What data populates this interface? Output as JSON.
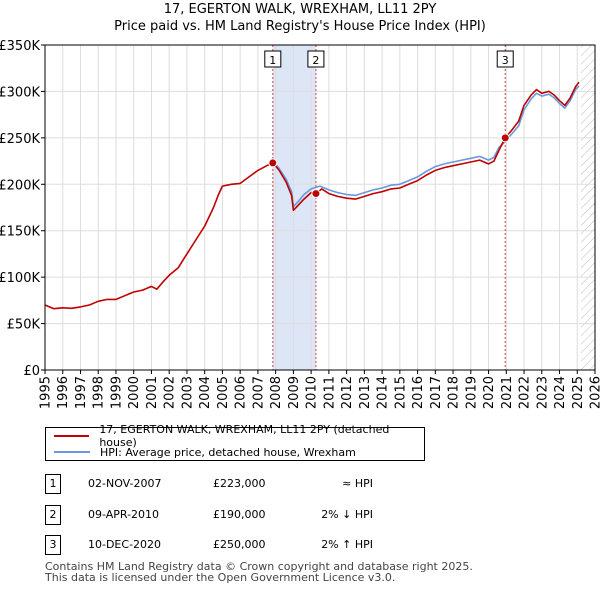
{
  "title_line1": "17, EGERTON WALK, WREXHAM, LL11 2PY",
  "title_line2": "Price paid vs. HM Land Registry's House Price Index (HPI)",
  "colors": {
    "price_paid": "#c00000",
    "hpi": "#6699dd",
    "shade": "#dde6f6",
    "marker_line": "#d04040"
  },
  "chart_data": {
    "type": "line",
    "xlim": [
      1995,
      2026
    ],
    "ylim": [
      0,
      350000
    ],
    "x_ticks": [
      "1995",
      "1996",
      "1997",
      "1998",
      "1999",
      "2000",
      "2001",
      "2002",
      "2003",
      "2004",
      "2005",
      "2006",
      "2007",
      "2008",
      "2009",
      "2010",
      "2011",
      "2012",
      "2013",
      "2014",
      "2015",
      "2016",
      "2017",
      "2018",
      "2019",
      "2020",
      "2021",
      "2022",
      "2023",
      "2024",
      "2025",
      "2026"
    ],
    "y_ticks": [
      {
        "value": 0,
        "label": "£0"
      },
      {
        "value": 50000,
        "label": "£50K"
      },
      {
        "value": 100000,
        "label": "£100K"
      },
      {
        "value": 150000,
        "label": "£150K"
      },
      {
        "value": 200000,
        "label": "£200K"
      },
      {
        "value": 250000,
        "label": "£250K"
      },
      {
        "value": 300000,
        "label": "£300K"
      },
      {
        "value": 350000,
        "label": "£350K"
      }
    ],
    "series": [
      {
        "name": "17, EGERTON WALK, WREXHAM, LL11 2PY (detached house)",
        "color": "#c00000",
        "points": [
          [
            1995.0,
            70000
          ],
          [
            1995.5,
            66000
          ],
          [
            1996.0,
            67000
          ],
          [
            1996.5,
            66500
          ],
          [
            1997.0,
            68000
          ],
          [
            1997.5,
            70000
          ],
          [
            1998.0,
            74000
          ],
          [
            1998.5,
            76000
          ],
          [
            1999.0,
            76000
          ],
          [
            1999.5,
            80000
          ],
          [
            2000.0,
            84000
          ],
          [
            2000.5,
            86000
          ],
          [
            2001.0,
            90000
          ],
          [
            2001.3,
            87000
          ],
          [
            2001.7,
            96000
          ],
          [
            2002.0,
            102000
          ],
          [
            2002.5,
            110000
          ],
          [
            2003.0,
            125000
          ],
          [
            2003.5,
            140000
          ],
          [
            2004.0,
            155000
          ],
          [
            2004.5,
            175000
          ],
          [
            2004.8,
            190000
          ],
          [
            2005.0,
            198000
          ],
          [
            2005.5,
            200000
          ],
          [
            2006.0,
            201000
          ],
          [
            2006.5,
            208000
          ],
          [
            2007.0,
            215000
          ],
          [
            2007.5,
            220000
          ],
          [
            2007.84,
            223000
          ],
          [
            2008.2,
            215000
          ],
          [
            2008.6,
            202000
          ],
          [
            2008.9,
            188000
          ],
          [
            2009.0,
            172000
          ],
          [
            2009.3,
            178000
          ],
          [
            2009.6,
            184000
          ],
          [
            2010.0,
            191000
          ],
          [
            2010.27,
            190000
          ],
          [
            2010.6,
            195000
          ],
          [
            2011.0,
            190000
          ],
          [
            2011.5,
            187000
          ],
          [
            2012.0,
            185000
          ],
          [
            2012.5,
            184000
          ],
          [
            2013.0,
            187000
          ],
          [
            2013.5,
            190000
          ],
          [
            2014.0,
            192000
          ],
          [
            2014.5,
            195000
          ],
          [
            2015.0,
            196000
          ],
          [
            2015.5,
            200000
          ],
          [
            2016.0,
            204000
          ],
          [
            2016.5,
            210000
          ],
          [
            2017.0,
            215000
          ],
          [
            2017.5,
            218000
          ],
          [
            2018.0,
            220000
          ],
          [
            2018.5,
            222000
          ],
          [
            2019.0,
            224000
          ],
          [
            2019.5,
            226000
          ],
          [
            2020.0,
            222000
          ],
          [
            2020.3,
            225000
          ],
          [
            2020.6,
            237000
          ],
          [
            2020.94,
            250000
          ],
          [
            2021.3,
            258000
          ],
          [
            2021.7,
            268000
          ],
          [
            2022.0,
            285000
          ],
          [
            2022.4,
            296000
          ],
          [
            2022.7,
            302000
          ],
          [
            2023.0,
            298000
          ],
          [
            2023.4,
            300000
          ],
          [
            2023.7,
            296000
          ],
          [
            2024.0,
            290000
          ],
          [
            2024.3,
            285000
          ],
          [
            2024.6,
            293000
          ],
          [
            2024.9,
            305000
          ],
          [
            2025.1,
            310000
          ]
        ]
      },
      {
        "name": "HPI: Average price, detached house, Wrexham",
        "color": "#6699dd",
        "points": [
          [
            2007.9,
            224000
          ],
          [
            2008.2,
            217000
          ],
          [
            2008.6,
            205000
          ],
          [
            2008.9,
            192000
          ],
          [
            2009.0,
            176000
          ],
          [
            2009.3,
            182000
          ],
          [
            2009.6,
            189000
          ],
          [
            2010.0,
            195000
          ],
          [
            2010.5,
            198000
          ],
          [
            2011.0,
            194000
          ],
          [
            2011.5,
            191000
          ],
          [
            2012.0,
            189000
          ],
          [
            2012.5,
            188000
          ],
          [
            2013.0,
            191000
          ],
          [
            2013.5,
            194000
          ],
          [
            2014.0,
            196000
          ],
          [
            2014.5,
            199000
          ],
          [
            2015.0,
            200000
          ],
          [
            2015.5,
            204000
          ],
          [
            2016.0,
            208000
          ],
          [
            2016.5,
            214000
          ],
          [
            2017.0,
            219000
          ],
          [
            2017.5,
            222000
          ],
          [
            2018.0,
            224000
          ],
          [
            2018.5,
            226000
          ],
          [
            2019.0,
            228000
          ],
          [
            2019.5,
            230000
          ],
          [
            2020.0,
            226000
          ],
          [
            2020.3,
            229000
          ],
          [
            2020.6,
            240000
          ],
          [
            2020.94,
            246000
          ],
          [
            2021.3,
            254000
          ],
          [
            2021.7,
            263000
          ],
          [
            2022.0,
            280000
          ],
          [
            2022.4,
            292000
          ],
          [
            2022.7,
            298000
          ],
          [
            2023.0,
            295000
          ],
          [
            2023.4,
            297000
          ],
          [
            2023.7,
            293000
          ],
          [
            2024.0,
            287000
          ],
          [
            2024.3,
            282000
          ],
          [
            2024.6,
            290000
          ],
          [
            2024.9,
            302000
          ],
          [
            2025.1,
            306000
          ]
        ]
      }
    ],
    "shaded_ranges": [
      [
        2007.84,
        2010.27
      ]
    ],
    "future_hatch_from": 2025.2,
    "transactions": [
      {
        "num": "1",
        "x": 2007.84,
        "y": 223000
      },
      {
        "num": "2",
        "x": 2010.27,
        "y": 190000
      },
      {
        "num": "3",
        "x": 2020.94,
        "y": 250000
      }
    ]
  },
  "legend": {
    "items": [
      {
        "label": "17, EGERTON WALK, WREXHAM, LL11 2PY (detached house)"
      },
      {
        "label": "HPI: Average price, detached house, Wrexham"
      }
    ]
  },
  "transactions_table": [
    {
      "num": "1",
      "date": "02-NOV-2007",
      "price": "£223,000",
      "hpi": "≈ HPI"
    },
    {
      "num": "2",
      "date": "09-APR-2010",
      "price": "£190,000",
      "hpi": "2% ↓ HPI"
    },
    {
      "num": "3",
      "date": "10-DEC-2020",
      "price": "£250,000",
      "hpi": "2% ↑ HPI"
    }
  ],
  "footer": {
    "line1": "Contains HM Land Registry data © Crown copyright and database right 2025.",
    "line2": "This data is licensed under the Open Government Licence v3.0."
  }
}
